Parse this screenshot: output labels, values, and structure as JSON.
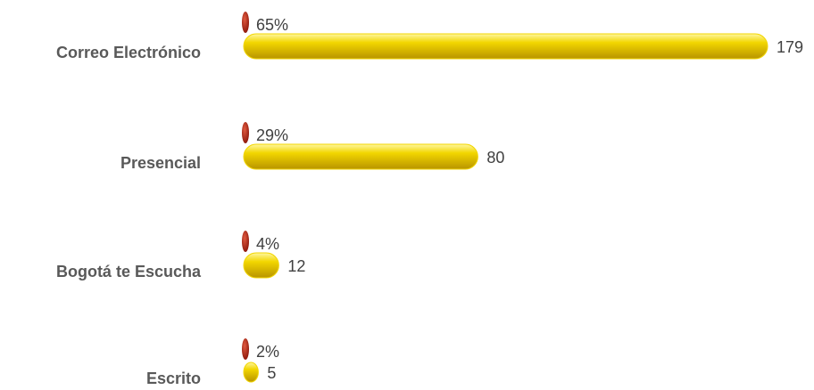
{
  "chart_data": {
    "type": "bar",
    "orientation": "horizontal",
    "categories": [
      "Correo Electrónico",
      "Presencial",
      "Bogotá te Escucha",
      "Escrito"
    ],
    "series": [
      {
        "color": "#f2d600",
        "values": [
          179,
          80,
          12,
          5
        ]
      },
      {
        "color": "#a01c10",
        "values": [
          65,
          29,
          4,
          2
        ],
        "value_labels": [
          "65%",
          "29%",
          "4%",
          "2%"
        ]
      }
    ],
    "xlim": [
      0,
      179
    ]
  }
}
